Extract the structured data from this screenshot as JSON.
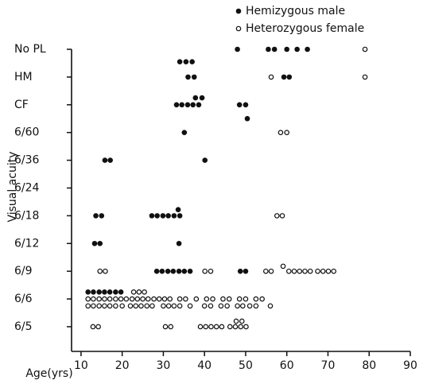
{
  "chart_data": {
    "type": "scatter",
    "xlabel": "Age(yrs)",
    "ylabel": "Visual acuity",
    "xlim": [
      7.7,
      90
    ],
    "xticks": [
      10,
      20,
      30,
      40,
      50,
      60,
      70,
      80,
      90
    ],
    "ylim": [
      -0.89,
      10
    ],
    "yticks": [
      {
        "value": 0,
        "label": "6/5"
      },
      {
        "value": 1,
        "label": "6/6"
      },
      {
        "value": 2,
        "label": "6/9"
      },
      {
        "value": 3,
        "label": "6/12"
      },
      {
        "value": 4,
        "label": "6/18"
      },
      {
        "value": 5,
        "label": "6/24"
      },
      {
        "value": 6,
        "label": "6/36"
      },
      {
        "value": 7,
        "label": "6/60"
      },
      {
        "value": 8,
        "label": "CF"
      },
      {
        "value": 9,
        "label": "HM"
      },
      {
        "value": 10,
        "label": "No PL"
      }
    ],
    "legend": "top-right",
    "series": [
      {
        "name": "Hemizygous male",
        "color": "#111111",
        "filled": true,
        "x": [
          48,
          55.5,
          57,
          60,
          62.5,
          65,
          34,
          35.5,
          37,
          36,
          37.5,
          59.3,
          60.6,
          33.2,
          34.5,
          35.9,
          37.2,
          38.6,
          37.8,
          39.4,
          48.5,
          50,
          50.4,
          35.1,
          15.8,
          17.1,
          40.1,
          13.6,
          15,
          27.2,
          28.5,
          29.9,
          31.2,
          32.6,
          34,
          33.6,
          13.3,
          14.6,
          33.8,
          28.4,
          29.7,
          31.1,
          32.4,
          33.8,
          35.1,
          36.5,
          48.7,
          50,
          11.7,
          13,
          14.4,
          15.7,
          17,
          18.4,
          19.7
        ],
        "values": [
          10,
          10,
          10,
          10,
          10,
          10,
          9.55,
          9.55,
          9.55,
          9,
          9,
          9,
          9,
          8,
          8,
          8,
          8,
          8,
          8.25,
          8.25,
          8,
          8,
          7.5,
          7,
          6,
          6,
          6,
          4,
          4,
          4,
          4,
          4,
          4,
          4,
          4,
          4.22,
          3,
          3,
          3,
          2,
          2,
          2,
          2,
          2,
          2,
          2,
          2,
          2,
          1.25,
          1.25,
          1.25,
          1.25,
          1.25,
          1.25,
          1.25
        ]
      },
      {
        "name": "Heterozygous female",
        "color": "#111111",
        "filled": false,
        "x": [
          79,
          56.2,
          79,
          58.5,
          60,
          57.6,
          58.9,
          14.6,
          15.9,
          40.1,
          41.5,
          54.9,
          56.2,
          59.1,
          60.5,
          61.8,
          63.1,
          64.4,
          65.7,
          67.5,
          68.8,
          70.1,
          71.4,
          22.8,
          24.1,
          25.4,
          11.7,
          13,
          14.4,
          15.7,
          17,
          18.4,
          19.7,
          21,
          22.4,
          23.7,
          25,
          26.3,
          27.7,
          29,
          30.3,
          31.6,
          34,
          35.4,
          38,
          40.5,
          42,
          44.5,
          46,
          48.5,
          50,
          52.5,
          54,
          11.7,
          13,
          14.4,
          15.7,
          17,
          18.4,
          20,
          22,
          23.3,
          24.6,
          26,
          27.3,
          30,
          31.3,
          32.6,
          34,
          36.5,
          40,
          41.5,
          44,
          45.5,
          48,
          49.3,
          51,
          52.5,
          56,
          12.9,
          14.2,
          30.5,
          31.8,
          39,
          40.3,
          41.6,
          42.9,
          44.2,
          47.7,
          49.1,
          46.2,
          47.5,
          48.8,
          50.1
        ],
        "values": [
          10,
          9,
          9,
          7,
          7,
          4,
          4,
          2,
          2,
          2,
          2,
          2,
          2,
          2.18,
          2,
          2,
          2,
          2,
          2,
          2,
          2,
          2,
          2,
          1.25,
          1.25,
          1.25,
          1,
          1,
          1,
          1,
          1,
          1,
          1,
          1,
          1,
          1,
          1,
          1,
          1,
          1,
          1,
          1,
          1,
          1,
          1,
          1,
          1,
          1,
          1,
          1,
          1,
          1,
          1,
          0.75,
          0.75,
          0.75,
          0.75,
          0.75,
          0.75,
          0.75,
          0.75,
          0.75,
          0.75,
          0.75,
          0.75,
          0.75,
          0.75,
          0.75,
          0.75,
          0.75,
          0.75,
          0.75,
          0.75,
          0.75,
          0.75,
          0.75,
          0.75,
          0.75,
          0.75,
          0,
          0,
          0,
          0,
          0,
          0,
          0,
          0,
          0,
          0.2,
          0.2,
          0,
          0,
          0,
          0
        ]
      }
    ]
  }
}
